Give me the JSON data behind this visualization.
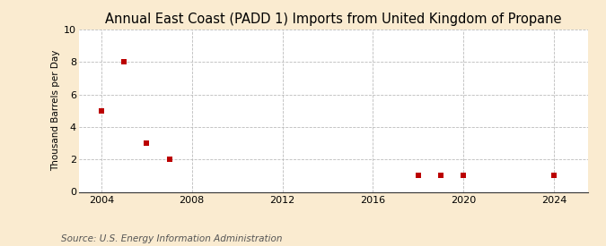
{
  "title": "Annual East Coast (PADD 1) Imports from United Kingdom of Propane",
  "ylabel": "Thousand Barrels per Day",
  "source": "Source: U.S. Energy Information Administration",
  "x_data": [
    2004,
    2005,
    2006,
    2007,
    2018,
    2019,
    2020,
    2024
  ],
  "y_data": [
    5.0,
    8.0,
    3.0,
    2.0,
    1.0,
    1.0,
    1.0,
    1.0
  ],
  "marker_color": "#bb0000",
  "marker_size": 16,
  "xlim": [
    2003.0,
    2025.5
  ],
  "ylim": [
    0,
    10
  ],
  "xticks": [
    2004,
    2008,
    2012,
    2016,
    2020,
    2024
  ],
  "yticks": [
    0,
    2,
    4,
    6,
    8,
    10
  ],
  "background_color": "#faebd0",
  "plot_bg_color": "#ffffff",
  "title_fontsize": 10.5,
  "label_fontsize": 7.5,
  "tick_fontsize": 8,
  "source_fontsize": 7.5
}
